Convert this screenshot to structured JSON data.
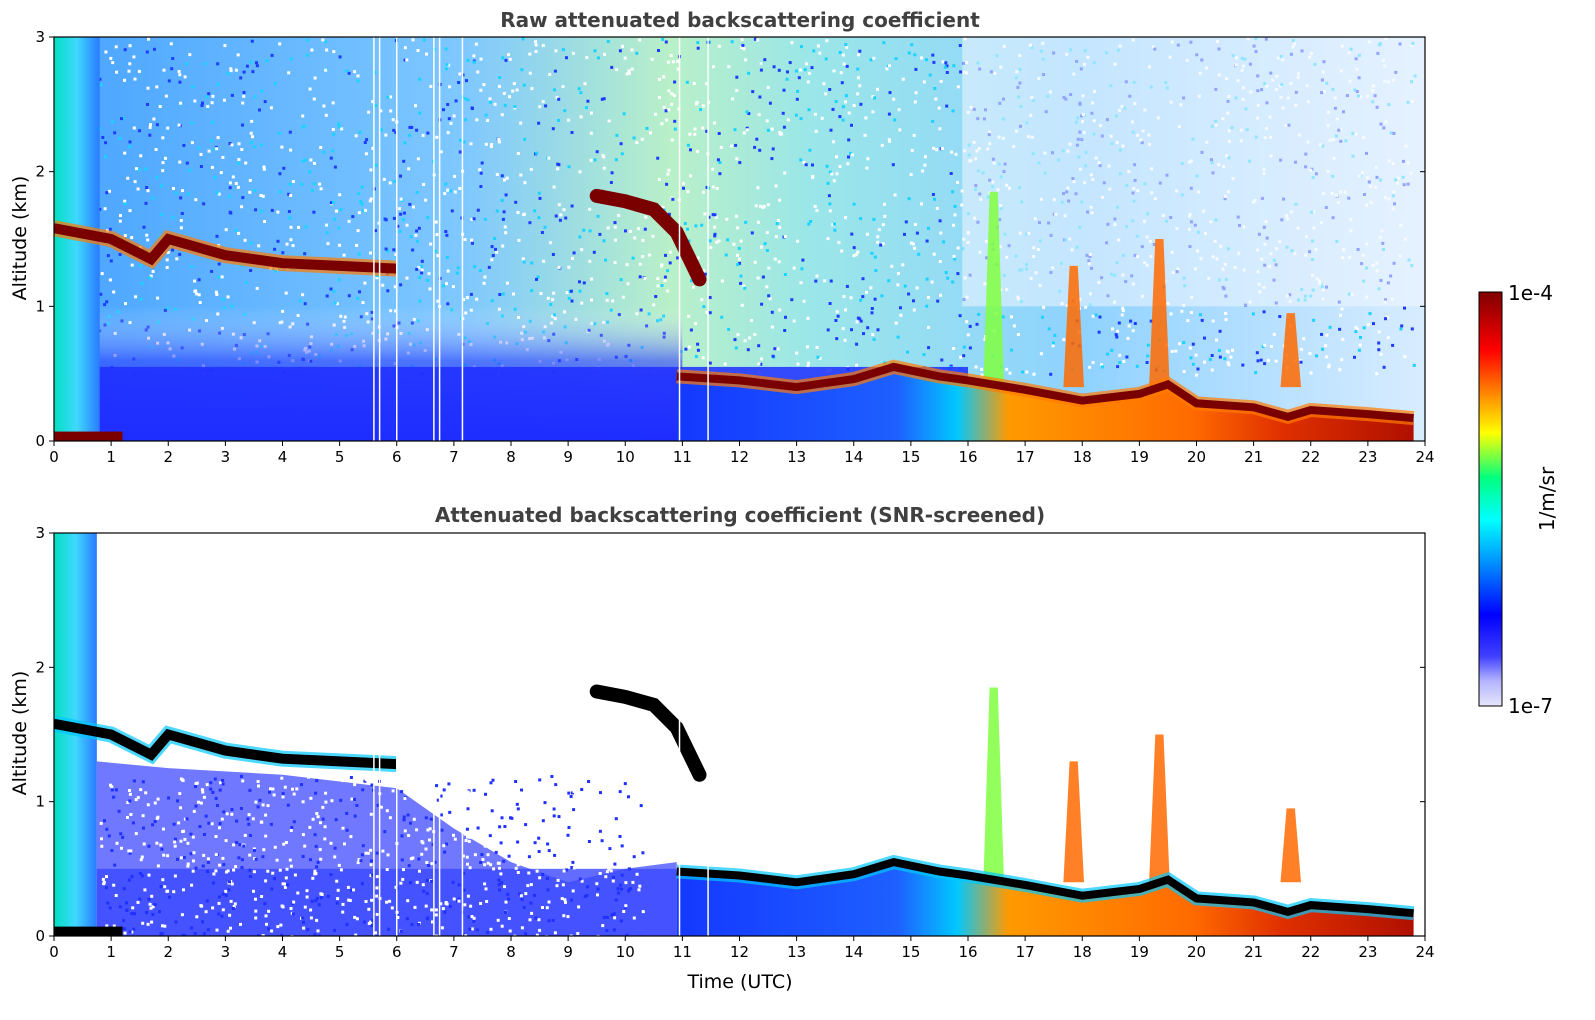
{
  "chart_data": [
    {
      "type": "heatmap",
      "title": "Raw attenuated backscattering coefficient",
      "xlabel": "",
      "ylabel": "Altitude (km)",
      "xlim": [
        0,
        24
      ],
      "ylim": [
        0,
        3
      ],
      "xticks": [
        "0",
        "1",
        "2",
        "3",
        "4",
        "5",
        "6",
        "7",
        "8",
        "9",
        "10",
        "11",
        "12",
        "13",
        "14",
        "15",
        "16",
        "17",
        "18",
        "19",
        "20",
        "21",
        "22",
        "23",
        "24"
      ],
      "yticks": [
        "0",
        "1",
        "2",
        "3"
      ],
      "screened": false,
      "layer_top_km": [
        {
          "t": 0.0,
          "z": 1.58
        },
        {
          "t": 1.0,
          "z": 1.5
        },
        {
          "t": 1.7,
          "z": 1.35
        },
        {
          "t": 2.0,
          "z": 1.5
        },
        {
          "t": 3.0,
          "z": 1.38
        },
        {
          "t": 4.0,
          "z": 1.32
        },
        {
          "t": 5.0,
          "z": 1.3
        },
        {
          "t": 6.0,
          "z": 1.28
        }
      ],
      "elevated_cloud_km": [
        {
          "t": 9.5,
          "z": 1.82
        },
        {
          "t": 10.0,
          "z": 1.78
        },
        {
          "t": 10.5,
          "z": 1.72
        },
        {
          "t": 10.9,
          "z": 1.55
        },
        {
          "t": 11.3,
          "z": 1.2
        }
      ],
      "boundary_layer_km": [
        {
          "t": 10.9,
          "z": 0.48
        },
        {
          "t": 12.0,
          "z": 0.45
        },
        {
          "t": 13.0,
          "z": 0.4
        },
        {
          "t": 14.0,
          "z": 0.46
        },
        {
          "t": 14.7,
          "z": 0.55
        },
        {
          "t": 15.5,
          "z": 0.48
        },
        {
          "t": 16.0,
          "z": 0.45
        },
        {
          "t": 17.0,
          "z": 0.38
        },
        {
          "t": 18.0,
          "z": 0.3
        },
        {
          "t": 19.0,
          "z": 0.35
        },
        {
          "t": 19.5,
          "z": 0.42
        },
        {
          "t": 20.0,
          "z": 0.28
        },
        {
          "t": 21.0,
          "z": 0.25
        },
        {
          "t": 21.6,
          "z": 0.18
        },
        {
          "t": 22.0,
          "z": 0.23
        },
        {
          "t": 23.0,
          "z": 0.2
        },
        {
          "t": 23.8,
          "z": 0.17
        }
      ],
      "convective_plumes": [
        {
          "t": 16.45,
          "z": 1.85
        },
        {
          "t": 17.85,
          "z": 1.3
        },
        {
          "t": 19.35,
          "z": 1.5
        },
        {
          "t": 21.65,
          "z": 0.95
        }
      ]
    },
    {
      "type": "heatmap",
      "title": "Attenuated backscattering coefficient (SNR-screened)",
      "xlabel": "Time (UTC)",
      "ylabel": "Altitude (km)",
      "xlim": [
        0,
        24
      ],
      "ylim": [
        0,
        3
      ],
      "xticks": [
        "0",
        "1",
        "2",
        "3",
        "4",
        "5",
        "6",
        "7",
        "8",
        "9",
        "10",
        "11",
        "12",
        "13",
        "14",
        "15",
        "16",
        "17",
        "18",
        "19",
        "20",
        "21",
        "22",
        "23",
        "24"
      ],
      "yticks": [
        "0",
        "1",
        "2",
        "3"
      ],
      "screened": true
    }
  ],
  "colorbar": {
    "label": "1/m/sr",
    "max_label": "1e-4",
    "min_label": "1e-7",
    "range": [
      1e-07,
      0.0001
    ],
    "colors": [
      "#e6e6fa",
      "#b4b4ff",
      "#0000ff",
      "#00a0ff",
      "#00ffff",
      "#00ff80",
      "#ffff00",
      "#ff8000",
      "#ff0000",
      "#800000"
    ]
  }
}
